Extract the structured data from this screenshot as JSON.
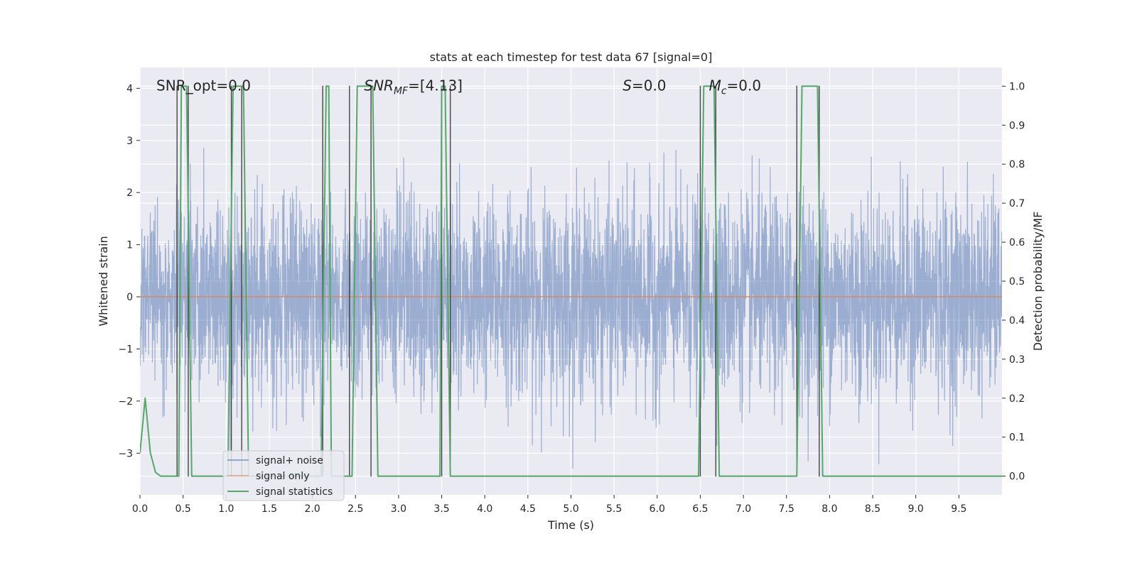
{
  "chart_data": {
    "type": "line",
    "title": "stats at each timestep for test data 67 [signal=0]",
    "xlabel": "Time (s)",
    "ylabel": "Whitened strain",
    "y2label": "Detection probability/MF",
    "xlim": [
      0.0,
      10.0
    ],
    "ylim": [
      -3.8,
      4.4
    ],
    "y2lim": [
      -0.048,
      1.048
    ],
    "x_ticks": [
      0.0,
      0.5,
      1.0,
      1.5,
      2.0,
      2.5,
      3.0,
      3.5,
      4.0,
      4.5,
      5.0,
      5.5,
      6.0,
      6.5,
      7.0,
      7.5,
      8.0,
      8.5,
      9.0,
      9.5
    ],
    "x_tick_labels": [
      "0.0",
      "0.5",
      "1.0",
      "1.5",
      "2.0",
      "2.5",
      "3.0",
      "3.5",
      "4.0",
      "4.5",
      "5.0",
      "5.5",
      "6.0",
      "6.5",
      "7.0",
      "7.5",
      "8.0",
      "8.5",
      "9.0",
      "9.5"
    ],
    "y_ticks": [
      -3,
      -2,
      -1,
      0,
      1,
      2,
      3,
      4
    ],
    "y_tick_labels": [
      "−3",
      "−2",
      "−1",
      "0",
      "1",
      "2",
      "3",
      "4"
    ],
    "y2_ticks": [
      0.0,
      0.1,
      0.2,
      0.3,
      0.4,
      0.5,
      0.6,
      0.7,
      0.8,
      0.9,
      1.0
    ],
    "y2_tick_labels": [
      "0.0",
      "0.1",
      "0.2",
      "0.3",
      "0.4",
      "0.5",
      "0.6",
      "0.7",
      "0.8",
      "0.9",
      "1.0"
    ],
    "grid": true,
    "legend_position": "lower-left",
    "annotations": [
      {
        "label": "SNR_opt=0.0",
        "x": 0.19,
        "y": 4.05,
        "math": false
      },
      {
        "label": "SNR_MF=[4.13]",
        "x": 2.6,
        "y": 4.05,
        "math": true,
        "base": "SNR",
        "sub": "MF",
        "rest": "=[4.13]"
      },
      {
        "label": "S=0.0",
        "x": 5.6,
        "y": 4.05,
        "math": true,
        "base": "S",
        "sub": "",
        "rest": "=0.0"
      },
      {
        "label": "M_c=0.0",
        "x": 6.6,
        "y": 4.05,
        "math": true,
        "base": "M",
        "sub": "c",
        "rest": "=0.0"
      }
    ],
    "series": [
      {
        "name": "signal+ noise",
        "color": "#4c72b0",
        "kind": "noise",
        "axis": "left",
        "envelope_note": "dense whitened strain, mostly within [-2.5, 2.5], peaks near 4"
      },
      {
        "name": "signal only",
        "color": "#dd8452",
        "kind": "flat",
        "axis": "left",
        "x": [
          0.0,
          10.0
        ],
        "values": [
          0.0,
          0.0
        ]
      },
      {
        "name": "signal statistics",
        "color": "#55a868",
        "kind": "line",
        "axis": "right",
        "x": [
          0.0,
          0.06,
          0.12,
          0.18,
          0.24,
          0.3,
          0.36,
          0.42,
          0.45,
          0.48,
          0.54,
          0.6,
          0.66,
          0.72,
          0.84,
          0.96,
          1.02,
          1.08,
          1.11,
          1.2,
          1.26,
          1.32,
          1.44,
          1.56,
          1.68,
          1.8,
          1.92,
          2.04,
          2.1,
          2.16,
          2.19,
          2.22,
          2.28,
          2.34,
          2.4,
          2.46,
          2.52,
          2.58,
          2.64,
          2.7,
          2.76,
          2.88,
          3.0,
          3.12,
          3.24,
          3.36,
          3.48,
          3.5,
          3.54,
          3.6,
          3.66,
          3.72,
          3.84,
          3.96,
          4.08,
          4.2,
          4.32,
          4.44,
          4.56,
          4.68,
          4.8,
          4.92,
          5.04,
          5.16,
          5.28,
          5.4,
          5.52,
          5.64,
          5.76,
          5.88,
          6.0,
          6.12,
          6.24,
          6.36,
          6.48,
          6.54,
          6.6,
          6.66,
          6.72,
          6.78,
          6.84,
          6.96,
          7.08,
          7.2,
          7.32,
          7.44,
          7.56,
          7.62,
          7.68,
          7.74,
          7.8,
          7.86,
          7.92,
          7.98,
          8.1,
          8.22,
          8.34,
          8.46,
          8.58,
          8.7,
          8.82,
          8.94,
          9.06,
          9.18,
          9.3,
          9.42,
          9.54,
          9.66,
          9.78,
          9.9,
          10.0
        ],
        "values": [
          0.06,
          0.2,
          0.06,
          0.01,
          0.0,
          0.0,
          0.0,
          0.0,
          0.0,
          1.0,
          1.0,
          0.0,
          0.0,
          0.0,
          0.0,
          0.0,
          0.0,
          1.0,
          1.0,
          1.0,
          0.0,
          0.0,
          0.0,
          0.0,
          0.0,
          0.0,
          0.0,
          0.0,
          0.0,
          1.0,
          1.0,
          0.0,
          0.0,
          0.0,
          0.0,
          0.0,
          1.0,
          1.0,
          1.0,
          1.0,
          0.0,
          0.0,
          0.0,
          0.0,
          0.0,
          0.0,
          0.0,
          1.0,
          1.0,
          0.0,
          0.0,
          0.0,
          0.0,
          0.0,
          0.0,
          0.0,
          0.0,
          0.0,
          0.0,
          0.0,
          0.0,
          0.0,
          0.0,
          0.0,
          0.0,
          0.0,
          0.0,
          0.0,
          0.0,
          0.0,
          0.0,
          0.0,
          0.0,
          0.0,
          0.0,
          1.0,
          1.0,
          1.0,
          0.0,
          0.0,
          0.0,
          0.0,
          0.0,
          0.0,
          0.0,
          0.0,
          0.0,
          0.0,
          1.0,
          1.0,
          1.0,
          1.0,
          0.0,
          0.0,
          0.0,
          0.0,
          0.0,
          0.0,
          0.0,
          0.0,
          0.0,
          0.0,
          0.0,
          0.0,
          0.0,
          0.0,
          0.0,
          0.0,
          0.0,
          0.0,
          0.0
        ]
      }
    ],
    "vertical_lines": {
      "color": "#444444",
      "axis": "left",
      "x": [
        0.43,
        0.56,
        1.06,
        1.18,
        2.12,
        2.43,
        2.68,
        3.5,
        3.6,
        6.5,
        6.68,
        7.62,
        7.88
      ],
      "ymin": -3.45,
      "ymax": 4.05
    }
  }
}
